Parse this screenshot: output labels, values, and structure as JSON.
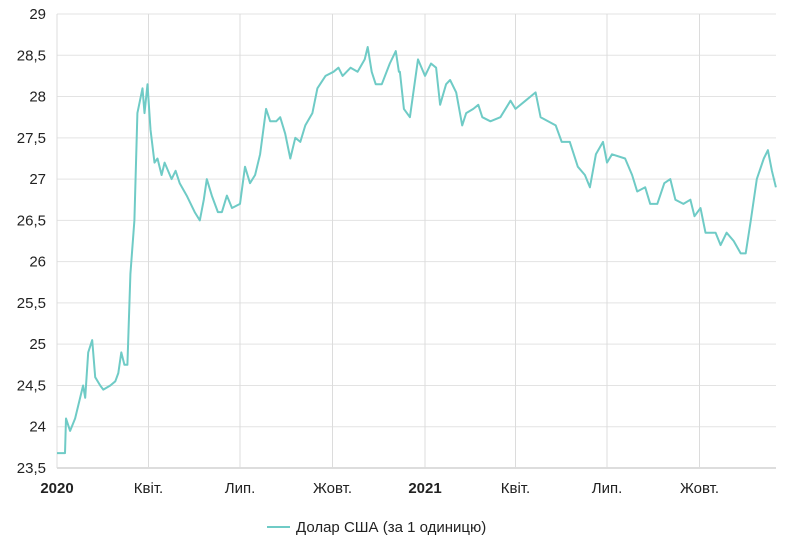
{
  "chart_data": {
    "type": "line",
    "title": "",
    "xlabel": "",
    "ylabel": "",
    "ylim": [
      23.5,
      29
    ],
    "xlim": [
      "2020-01-01",
      "2021-12-16"
    ],
    "grid": true,
    "legend_position": "bottom",
    "y_ticks": [
      "23,5",
      "24",
      "24,5",
      "25",
      "25,5",
      "26",
      "26,5",
      "27",
      "27,5",
      "28",
      "28,5",
      "29"
    ],
    "y_tick_values": [
      23.5,
      24,
      24.5,
      25,
      25.5,
      26,
      26.5,
      27,
      27.5,
      28,
      28.5,
      29
    ],
    "x_ticks": [
      {
        "label": "2020",
        "date": "2020-01-01",
        "bold": true
      },
      {
        "label": "Квіт.",
        "date": "2020-04-01",
        "bold": false
      },
      {
        "label": "Лип.",
        "date": "2020-07-01",
        "bold": false
      },
      {
        "label": "Жовт.",
        "date": "2020-10-01",
        "bold": false
      },
      {
        "label": "2021",
        "date": "2021-01-01",
        "bold": true
      },
      {
        "label": "Квіт.",
        "date": "2021-04-01",
        "bold": false
      },
      {
        "label": "Лип.",
        "date": "2021-07-01",
        "bold": false
      },
      {
        "label": "Жовт.",
        "date": "2021-10-01",
        "bold": false
      }
    ],
    "series": [
      {
        "name": "Долар США (за 1 одиницю)",
        "color": "#6fcbc6",
        "points": [
          [
            "2020-01-01",
            23.68
          ],
          [
            "2020-01-09",
            23.68
          ],
          [
            "2020-01-10",
            24.1
          ],
          [
            "2020-01-14",
            23.95
          ],
          [
            "2020-01-19",
            24.1
          ],
          [
            "2020-01-23",
            24.3
          ],
          [
            "2020-01-27",
            24.5
          ],
          [
            "2020-01-29",
            24.35
          ],
          [
            "2020-02-01",
            24.9
          ],
          [
            "2020-02-05",
            25.05
          ],
          [
            "2020-02-08",
            24.6
          ],
          [
            "2020-02-13",
            24.5
          ],
          [
            "2020-02-16",
            24.45
          ],
          [
            "2020-02-23",
            24.5
          ],
          [
            "2020-02-28",
            24.55
          ],
          [
            "2020-03-02",
            24.65
          ],
          [
            "2020-03-05",
            24.9
          ],
          [
            "2020-03-08",
            24.75
          ],
          [
            "2020-03-11",
            24.75
          ],
          [
            "2020-03-14",
            25.85
          ],
          [
            "2020-03-18",
            26.5
          ],
          [
            "2020-03-21",
            27.8
          ],
          [
            "2020-03-26",
            28.1
          ],
          [
            "2020-03-28",
            27.8
          ],
          [
            "2020-03-31",
            28.15
          ],
          [
            "2020-04-03",
            27.6
          ],
          [
            "2020-04-07",
            27.2
          ],
          [
            "2020-04-10",
            27.25
          ],
          [
            "2020-04-14",
            27.05
          ],
          [
            "2020-04-17",
            27.2
          ],
          [
            "2020-04-24",
            27.0
          ],
          [
            "2020-04-28",
            27.1
          ],
          [
            "2020-05-02",
            26.95
          ],
          [
            "2020-05-09",
            26.8
          ],
          [
            "2020-05-17",
            26.6
          ],
          [
            "2020-05-22",
            26.5
          ],
          [
            "2020-05-26",
            26.75
          ],
          [
            "2020-05-29",
            27.0
          ],
          [
            "2020-06-03",
            26.8
          ],
          [
            "2020-06-09",
            26.6
          ],
          [
            "2020-06-13",
            26.6
          ],
          [
            "2020-06-18",
            26.8
          ],
          [
            "2020-06-23",
            26.65
          ],
          [
            "2020-07-01",
            26.7
          ],
          [
            "2020-07-06",
            27.15
          ],
          [
            "2020-07-11",
            26.95
          ],
          [
            "2020-07-16",
            27.05
          ],
          [
            "2020-07-21",
            27.3
          ],
          [
            "2020-07-27",
            27.85
          ],
          [
            "2020-07-31",
            27.7
          ],
          [
            "2020-08-06",
            27.7
          ],
          [
            "2020-08-10",
            27.75
          ],
          [
            "2020-08-15",
            27.55
          ],
          [
            "2020-08-20",
            27.25
          ],
          [
            "2020-08-25",
            27.5
          ],
          [
            "2020-08-30",
            27.45
          ],
          [
            "2020-09-04",
            27.65
          ],
          [
            "2020-09-11",
            27.8
          ],
          [
            "2020-09-16",
            28.1
          ],
          [
            "2020-09-24",
            28.25
          ],
          [
            "2020-10-02",
            28.3
          ],
          [
            "2020-10-07",
            28.35
          ],
          [
            "2020-10-11",
            28.25
          ],
          [
            "2020-10-19",
            28.35
          ],
          [
            "2020-10-26",
            28.3
          ],
          [
            "2020-11-02",
            28.45
          ],
          [
            "2020-11-05",
            28.6
          ],
          [
            "2020-11-09",
            28.3
          ],
          [
            "2020-11-13",
            28.15
          ],
          [
            "2020-11-19",
            28.15
          ],
          [
            "2020-11-27",
            28.4
          ],
          [
            "2020-12-03",
            28.55
          ],
          [
            "2020-12-06",
            28.3
          ],
          [
            "2020-12-07",
            28.3
          ],
          [
            "2020-12-11",
            27.85
          ],
          [
            "2020-12-17",
            27.75
          ],
          [
            "2020-12-25",
            28.45
          ],
          [
            "2021-01-01",
            28.25
          ],
          [
            "2021-01-07",
            28.4
          ],
          [
            "2021-01-12",
            28.35
          ],
          [
            "2021-01-16",
            27.9
          ],
          [
            "2021-01-22",
            28.15
          ],
          [
            "2021-01-26",
            28.2
          ],
          [
            "2021-02-01",
            28.05
          ],
          [
            "2021-02-07",
            27.65
          ],
          [
            "2021-02-11",
            27.8
          ],
          [
            "2021-02-18",
            27.85
          ],
          [
            "2021-02-23",
            27.9
          ],
          [
            "2021-02-27",
            27.75
          ],
          [
            "2021-03-07",
            27.7
          ],
          [
            "2021-03-17",
            27.75
          ],
          [
            "2021-03-27",
            27.95
          ],
          [
            "2021-04-01",
            27.85
          ],
          [
            "2021-04-11",
            27.95
          ],
          [
            "2021-04-21",
            28.05
          ],
          [
            "2021-04-26",
            27.75
          ],
          [
            "2021-05-11",
            27.65
          ],
          [
            "2021-05-17",
            27.45
          ],
          [
            "2021-05-25",
            27.45
          ],
          [
            "2021-06-02",
            27.15
          ],
          [
            "2021-06-09",
            27.05
          ],
          [
            "2021-06-14",
            26.9
          ],
          [
            "2021-06-20",
            27.3
          ],
          [
            "2021-06-27",
            27.45
          ],
          [
            "2021-07-01",
            27.2
          ],
          [
            "2021-07-06",
            27.3
          ],
          [
            "2021-07-19",
            27.25
          ],
          [
            "2021-07-26",
            27.05
          ],
          [
            "2021-07-31",
            26.85
          ],
          [
            "2021-08-08",
            26.9
          ],
          [
            "2021-08-13",
            26.7
          ],
          [
            "2021-08-20",
            26.7
          ],
          [
            "2021-08-27",
            26.95
          ],
          [
            "2021-09-02",
            27.0
          ],
          [
            "2021-09-07",
            26.75
          ],
          [
            "2021-09-15",
            26.7
          ],
          [
            "2021-09-22",
            26.75
          ],
          [
            "2021-09-26",
            26.55
          ],
          [
            "2021-10-02",
            26.65
          ],
          [
            "2021-10-07",
            26.35
          ],
          [
            "2021-10-17",
            26.35
          ],
          [
            "2021-10-22",
            26.2
          ],
          [
            "2021-10-28",
            26.35
          ],
          [
            "2021-11-04",
            26.25
          ],
          [
            "2021-11-11",
            26.1
          ],
          [
            "2021-11-16",
            26.1
          ],
          [
            "2021-11-21",
            26.5
          ],
          [
            "2021-11-27",
            27.0
          ],
          [
            "2021-12-04",
            27.25
          ],
          [
            "2021-12-08",
            27.35
          ],
          [
            "2021-12-12",
            27.1
          ],
          [
            "2021-12-16",
            26.9
          ]
        ]
      }
    ]
  }
}
